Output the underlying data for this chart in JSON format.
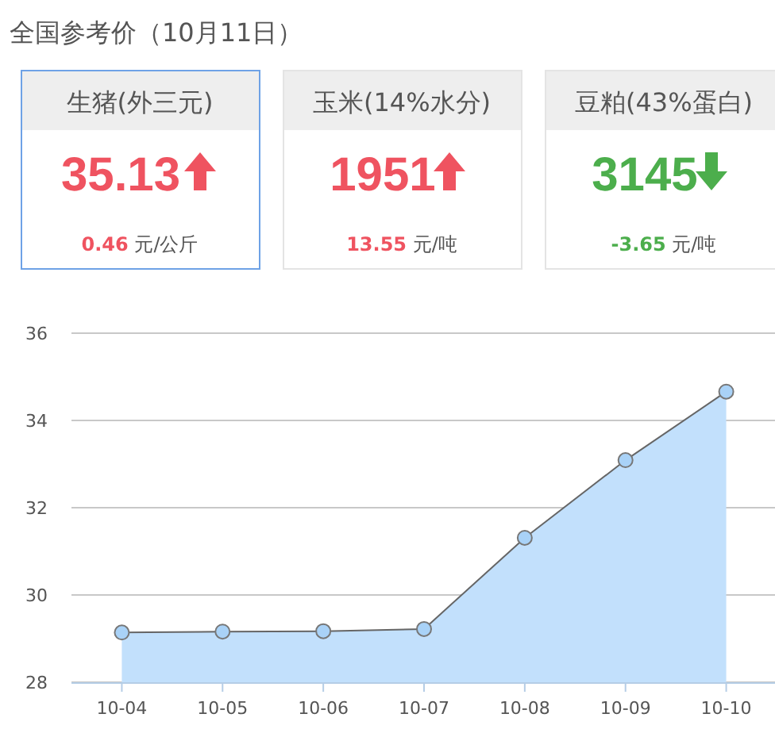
{
  "chart_data": [
    {
      "type": "other",
      "title": "全国参考价（10月11日）",
      "annotations": [
        "生猪(外三元)",
        "35.13",
        "0.46 元/公斤",
        "玉米(14%水分)",
        "1951",
        "13.55 元/吨",
        "豆粕(43%蛋白)",
        "3145",
        "-3.65 元/吨"
      ]
    },
    {
      "type": "area",
      "categories": [
        "10-04",
        "10-05",
        "10-06",
        "10-07",
        "10-08",
        "10-09",
        "10-10"
      ],
      "series": [
        {
          "color": "#c2e0fc",
          "values": [
            29.14,
            29.16,
            29.17,
            29.22,
            31.31,
            33.09,
            34.66
          ]
        }
      ],
      "ylim": [
        28,
        36
      ],
      "yticks": [
        28,
        30,
        32,
        34,
        36
      ],
      "grid": "y",
      "marker": "circle"
    }
  ]
}
